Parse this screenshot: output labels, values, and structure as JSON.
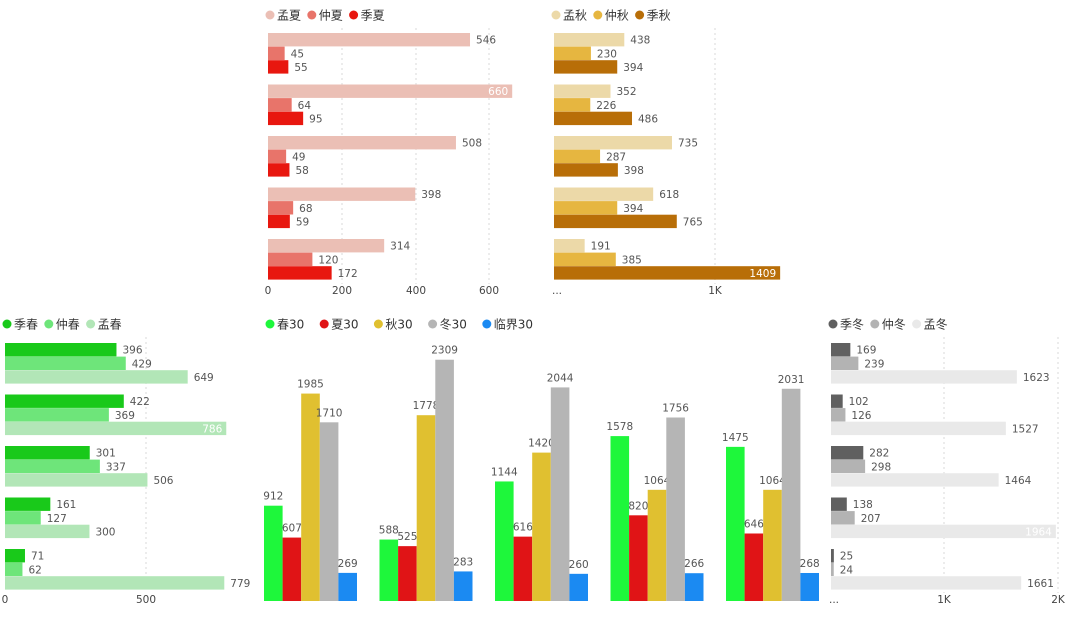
{
  "colors": {
    "meng_xia": "#ebbfb5",
    "zhong_xia": "#e8746a",
    "ji_xia": "#e8170f",
    "meng_qiu": "#ecd9a8",
    "zhong_qiu": "#e6b640",
    "ji_qiu": "#b86e08",
    "ji_chun": "#19c91a",
    "zhong_chun": "#6ee57a",
    "meng_chun": "#b2e6b7",
    "chun30": "#1ef73b",
    "xia30": "#e01416",
    "qiu30": "#e0c030",
    "dong30": "#b5b5b5",
    "linjie30": "#1b8af2",
    "ji_dong": "#606060",
    "zhong_dong": "#b3b3b3",
    "meng_dong": "#e9e9e9"
  },
  "chart_data": [
    {
      "type": "bar",
      "orientation": "horizontal",
      "series": [
        {
          "name": "孟夏",
          "values": [
            546,
            660,
            508,
            398,
            314
          ]
        },
        {
          "name": "仲夏",
          "values": [
            45,
            64,
            49,
            68,
            120
          ]
        },
        {
          "name": "季夏",
          "values": [
            55,
            95,
            58,
            59,
            172
          ]
        }
      ],
      "x_ticks": [
        "0",
        "200",
        "400",
        "600"
      ],
      "xlim": [
        0,
        700
      ],
      "legend_position": "top-left",
      "grid": true
    },
    {
      "type": "bar",
      "orientation": "horizontal",
      "series": [
        {
          "name": "孟秋",
          "values": [
            438,
            352,
            735,
            618,
            191
          ]
        },
        {
          "name": "仲秋",
          "values": [
            230,
            226,
            287,
            394,
            385
          ]
        },
        {
          "name": "季秋",
          "values": [
            394,
            486,
            398,
            765,
            1409
          ]
        }
      ],
      "x_ticks": [
        "...",
        "1K"
      ],
      "xlim": [
        0,
        1600
      ],
      "legend_position": "top-left",
      "grid": true
    },
    {
      "type": "bar",
      "orientation": "horizontal",
      "series": [
        {
          "name": "季春",
          "values": [
            396,
            422,
            301,
            161,
            71
          ]
        },
        {
          "name": "仲春",
          "values": [
            429,
            369,
            337,
            127,
            62
          ]
        },
        {
          "name": "孟春",
          "values": [
            649,
            786,
            506,
            300,
            779
          ]
        }
      ],
      "x_ticks": [
        "0",
        "500"
      ],
      "xlim": [
        0,
        860
      ],
      "legend_position": "top-left",
      "grid": true
    },
    {
      "type": "bar",
      "orientation": "vertical",
      "series": [
        {
          "name": "春30",
          "values": [
            912,
            588,
            1144,
            1578,
            1475
          ]
        },
        {
          "name": "夏30",
          "values": [
            607,
            525,
            616,
            820,
            646
          ]
        },
        {
          "name": "秋30",
          "values": [
            1985,
            1778,
            1420,
            1064,
            1064
          ]
        },
        {
          "name": "冬30",
          "values": [
            1710,
            2309,
            2044,
            1756,
            2031
          ]
        },
        {
          "name": "临界30",
          "values": [
            269,
            283,
            260,
            266,
            268
          ]
        }
      ],
      "ylim": [
        0,
        2500
      ],
      "legend_position": "top-left",
      "grid": false
    },
    {
      "type": "bar",
      "orientation": "horizontal",
      "series": [
        {
          "name": "季冬",
          "values": [
            169,
            102,
            282,
            138,
            25
          ]
        },
        {
          "name": "仲冬",
          "values": [
            239,
            126,
            298,
            207,
            24
          ]
        },
        {
          "name": "孟冬",
          "values": [
            1623,
            1527,
            1464,
            1964,
            1661
          ]
        }
      ],
      "x_ticks": [
        "...",
        "1K",
        "2K"
      ],
      "xlim": [
        0,
        2000
      ],
      "legend_position": "top-left",
      "grid": true
    }
  ]
}
